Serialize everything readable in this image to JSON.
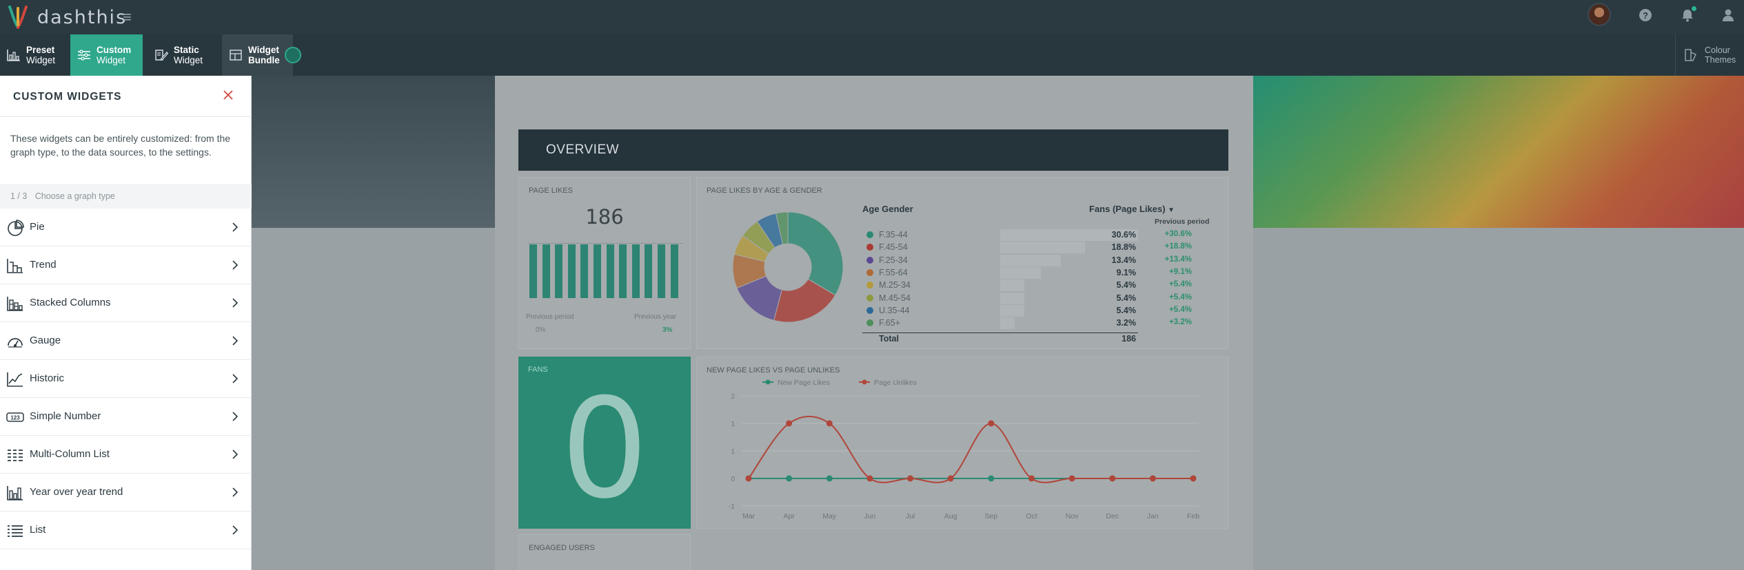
{
  "app": {
    "logo_text": "dashthis"
  },
  "toolbar": {
    "buttons": [
      {
        "line1": "Preset",
        "line2": "Widget",
        "icon": "bar-chart-icon"
      },
      {
        "line1": "Custom",
        "line2": "Widget",
        "icon": "sliders-icon"
      },
      {
        "line1": "Static",
        "line2": "Widget",
        "icon": "edit-document-icon"
      },
      {
        "line1": "Widget",
        "line2": "Bundle",
        "icon": "layout-icon"
      }
    ],
    "colour_themes": {
      "line1": "Colour",
      "line2": "Themes"
    }
  },
  "panel": {
    "title": "CUSTOM WIDGETS",
    "description": "These widgets can be entirely customized: from the graph type, to the data sources, to the settings.",
    "step": {
      "counter": "1 / 3",
      "label": "Choose a graph type"
    },
    "items": [
      {
        "label": "Pie",
        "icon": "pie-chart-icon"
      },
      {
        "label": "Trend",
        "icon": "trend-chart-icon"
      },
      {
        "label": "Stacked Columns",
        "icon": "stacked-columns-icon"
      },
      {
        "label": "Gauge",
        "icon": "gauge-icon"
      },
      {
        "label": "Historic",
        "icon": "historic-chart-icon"
      },
      {
        "label": "Simple Number",
        "icon": "number-icon"
      },
      {
        "label": "Multi-Column List",
        "icon": "multi-column-list-icon"
      },
      {
        "label": "Year over year trend",
        "icon": "year-over-year-icon"
      },
      {
        "label": "List",
        "icon": "list-icon"
      }
    ]
  },
  "dashboard": {
    "overview": "OVERVIEW",
    "page_likes": {
      "title": "PAGE LIKES",
      "value": "186",
      "prev_period_label": "Previous period",
      "prev_period_value": "0%",
      "prev_year_label": "Previous year",
      "prev_year_value": "3%"
    },
    "age_gender": {
      "title": "PAGE LIKES BY AGE & GENDER",
      "col_label": "Age Gender",
      "col_metric": "Fans (Page Likes)",
      "col_prev": "Previous period",
      "total_label": "Total",
      "total_value": "186",
      "rows": [
        {
          "label": "F.35-44",
          "pct": "30.6%",
          "prev": "+30.6%",
          "color": "#2a8a73",
          "share": 30.6
        },
        {
          "label": "F.45-54",
          "pct": "18.8%",
          "prev": "+18.8%",
          "color": "#a93a33",
          "share": 18.8
        },
        {
          "label": "F.25-34",
          "pct": "13.4%",
          "prev": "+13.4%",
          "color": "#5b4a93",
          "share": 13.4
        },
        {
          "label": "F.55-64",
          "pct": "9.1%",
          "prev": "+9.1%",
          "color": "#b06a35",
          "share": 9.1
        },
        {
          "label": "M.25-34",
          "pct": "5.4%",
          "prev": "+5.4%",
          "color": "#b49a3a",
          "share": 5.4
        },
        {
          "label": "M.45-54",
          "pct": "5.4%",
          "prev": "+5.4%",
          "color": "#8d9a3e",
          "share": 5.4
        },
        {
          "label": "U.35-44",
          "pct": "5.4%",
          "prev": "+5.4%",
          "color": "#2d6a9a",
          "share": 5.4
        },
        {
          "label": "F.65+",
          "pct": "3.2%",
          "prev": "+3.2%",
          "color": "#4e8f5c",
          "share": 3.2
        }
      ]
    },
    "fans": {
      "title": "FANS",
      "value": "0"
    },
    "likes_vs_unlikes": {
      "title": "NEW PAGE LIKES VS PAGE UNLIKES",
      "legend": [
        "New Page Likes",
        "Page Unlikes"
      ],
      "months": [
        "Mar",
        "Apr",
        "May",
        "Jun",
        "Jul",
        "Aug",
        "Sep",
        "Oct",
        "Nov",
        "Dec",
        "Jan",
        "Feb"
      ],
      "y_ticks": [
        "2",
        "1",
        "1",
        "0",
        "-1"
      ],
      "likes": [
        0,
        0,
        0,
        0,
        0,
        0,
        0,
        0,
        0,
        0,
        0,
        0
      ],
      "unlikes": [
        0,
        1,
        1,
        0,
        0,
        0,
        1,
        0,
        0,
        0,
        0,
        0
      ]
    },
    "engaged": {
      "title": "ENGAGED USERS"
    }
  },
  "colors": {
    "accent": "#2fa88c",
    "topbar": "#2b3940",
    "close": "#d0473c"
  }
}
